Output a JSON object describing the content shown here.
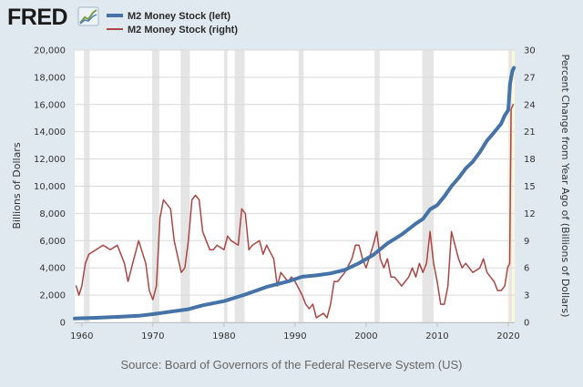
{
  "brand": {
    "logo_text": "FRED"
  },
  "colors": {
    "background": "#e1e9f0",
    "plot_background": "#ffffff",
    "grid": "#d9d9d9",
    "recession": "#e5e5e5",
    "left_series": "#4572a7",
    "right_series": "#aa4643",
    "highlight_band": "#fbf6dc"
  },
  "chart_data": {
    "type": "line",
    "title": "",
    "xlabel": "",
    "ylabel": "Billions of Dollars",
    "y2label": "Percent Change from Year Ago of (Billions of Dollars)",
    "xlim": [
      1959.0,
      2020.9
    ],
    "ylim": [
      0,
      20000
    ],
    "y2lim": [
      0,
      30
    ],
    "x_ticks": [
      1960,
      1970,
      1980,
      1990,
      2000,
      2010,
      2020
    ],
    "x_tick_labels": [
      "1960",
      "1970",
      "1980",
      "1990",
      "2000",
      "2010",
      "2020"
    ],
    "y_ticks": [
      0,
      2000,
      4000,
      6000,
      8000,
      10000,
      12000,
      14000,
      16000,
      18000,
      20000
    ],
    "y_tick_labels": [
      "0",
      "2,000",
      "4,000",
      "6,000",
      "8,000",
      "10,000",
      "12,000",
      "14,000",
      "16,000",
      "18,000",
      "20,000"
    ],
    "y2_ticks": [
      0,
      3,
      6,
      9,
      12,
      15,
      18,
      21,
      24,
      27,
      30
    ],
    "y2_tick_labels": [
      "0",
      "3",
      "6",
      "9",
      "12",
      "15",
      "18",
      "21",
      "24",
      "27",
      "30"
    ],
    "grid": true,
    "legend_position": "top",
    "recessions": [
      [
        1960.3,
        1961.1
      ],
      [
        1969.9,
        1970.9
      ],
      [
        1973.9,
        1975.2
      ],
      [
        1980.0,
        1980.5
      ],
      [
        1981.5,
        1982.9
      ],
      [
        1990.5,
        1991.2
      ],
      [
        2001.2,
        2001.9
      ],
      [
        2007.9,
        2009.5
      ],
      [
        2020.1,
        2020.5
      ]
    ],
    "series": [
      {
        "name": "M2 Money Stock (left)",
        "axis": "left",
        "x": [
          1959.0,
          1962.0,
          1965.0,
          1968.0,
          1970.0,
          1972.0,
          1975.0,
          1977.0,
          1980.0,
          1983.0,
          1986.0,
          1989.0,
          1991.0,
          1993.0,
          1995.0,
          1997.0,
          1999.0,
          2001.0,
          2003.0,
          2005.0,
          2007.0,
          2008.0,
          2009.0,
          2010.0,
          2011.0,
          2012.0,
          2013.0,
          2014.0,
          2015.0,
          2016.0,
          2017.0,
          2018.0,
          2019.0,
          2019.5,
          2020.0,
          2020.25,
          2020.4,
          2020.6,
          2020.8
        ],
        "values": [
          290,
          335,
          400,
          480,
          600,
          750,
          960,
          1250,
          1560,
          2050,
          2600,
          3000,
          3350,
          3450,
          3600,
          3850,
          4350,
          4950,
          5800,
          6450,
          7250,
          7600,
          8300,
          8600,
          9250,
          10000,
          10600,
          11300,
          11800,
          12500,
          13350,
          13950,
          14600,
          15200,
          15600,
          17500,
          18000,
          18500,
          18700
        ]
      },
      {
        "name": "M2 Money Stock (right)",
        "axis": "right",
        "x": [
          1959.2,
          1959.6,
          1960.0,
          1960.5,
          1961.0,
          1962.0,
          1963.0,
          1964.0,
          1965.0,
          1966.0,
          1966.5,
          1967.0,
          1968.0,
          1969.0,
          1969.5,
          1970.0,
          1970.5,
          1971.0,
          1971.5,
          1972.0,
          1972.5,
          1973.0,
          1974.0,
          1974.5,
          1975.0,
          1975.5,
          1976.0,
          1976.5,
          1977.0,
          1978.0,
          1978.5,
          1979.0,
          1980.0,
          1980.5,
          1981.0,
          1982.0,
          1982.5,
          1983.0,
          1983.5,
          1984.0,
          1985.0,
          1985.5,
          1986.0,
          1987.0,
          1987.5,
          1988.0,
          1989.0,
          1989.5,
          1990.0,
          1991.0,
          1991.5,
          1992.0,
          1992.5,
          1993.0,
          1994.0,
          1994.5,
          1995.0,
          1995.5,
          1996.0,
          1997.0,
          1998.0,
          1998.5,
          1999.0,
          1999.5,
          2000.0,
          2001.0,
          2001.5,
          2002.0,
          2002.5,
          2003.0,
          2003.5,
          2004.0,
          2005.0,
          2006.0,
          2006.5,
          2007.0,
          2007.5,
          2008.0,
          2008.5,
          2009.0,
          2009.5,
          2010.0,
          2010.5,
          2011.0,
          2011.5,
          2012.0,
          2012.5,
          2013.0,
          2013.5,
          2014.0,
          2015.0,
          2016.0,
          2016.5,
          2017.0,
          2017.5,
          2018.0,
          2018.5,
          2019.0,
          2019.5,
          2019.9,
          2020.2,
          2020.4,
          2020.7
        ],
        "values": [
          4.0,
          3.0,
          4.0,
          6.5,
          7.5,
          8.0,
          8.5,
          8.0,
          8.5,
          6.5,
          4.5,
          6.0,
          9.0,
          6.5,
          3.5,
          2.5,
          4.0,
          11.5,
          13.5,
          13.0,
          12.5,
          9.0,
          5.5,
          6.0,
          9.0,
          13.5,
          14.0,
          13.5,
          10.0,
          8.0,
          8.0,
          8.5,
          8.0,
          9.5,
          9.0,
          8.5,
          12.5,
          12.0,
          8.0,
          8.5,
          9.0,
          7.5,
          8.5,
          7.0,
          4.0,
          5.5,
          4.5,
          5.0,
          4.5,
          3.0,
          2.0,
          1.5,
          2.0,
          0.5,
          1.0,
          0.5,
          2.0,
          4.5,
          4.5,
          5.5,
          7.0,
          8.5,
          8.5,
          7.0,
          6.0,
          8.5,
          10.0,
          7.0,
          6.0,
          7.0,
          5.0,
          5.0,
          4.0,
          5.0,
          6.0,
          5.0,
          6.5,
          5.5,
          6.5,
          10.0,
          6.5,
          4.5,
          2.0,
          2.0,
          4.0,
          10.0,
          8.5,
          7.0,
          6.0,
          6.5,
          5.5,
          6.0,
          7.0,
          5.5,
          5.0,
          4.5,
          3.5,
          3.5,
          4.0,
          6.0,
          6.5,
          23.5,
          24.0
        ]
      }
    ],
    "source": "Source: Board of Governors of the Federal Reserve System (US)"
  }
}
